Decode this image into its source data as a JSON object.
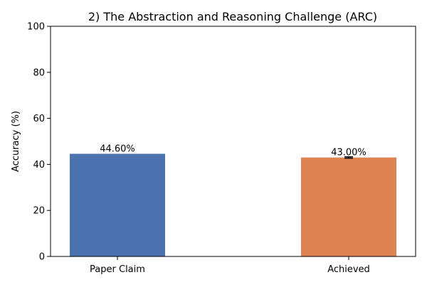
{
  "chart_data": {
    "type": "bar",
    "title": "2) The Abstraction and Reasoning Challenge (ARC)",
    "xlabel": "",
    "ylabel": "Accuracy (%)",
    "ylim": [
      0,
      100
    ],
    "yticks": [
      0,
      20,
      40,
      60,
      80,
      100
    ],
    "categories": [
      "Paper Claim",
      "Achieved"
    ],
    "values": [
      44.6,
      43.0
    ],
    "value_labels": [
      "44.60%",
      "43.00%"
    ],
    "error_bars": [
      null,
      0.3
    ],
    "colors": [
      "#4c72b0",
      "#dd8452"
    ],
    "grid": false,
    "legend": "none"
  }
}
